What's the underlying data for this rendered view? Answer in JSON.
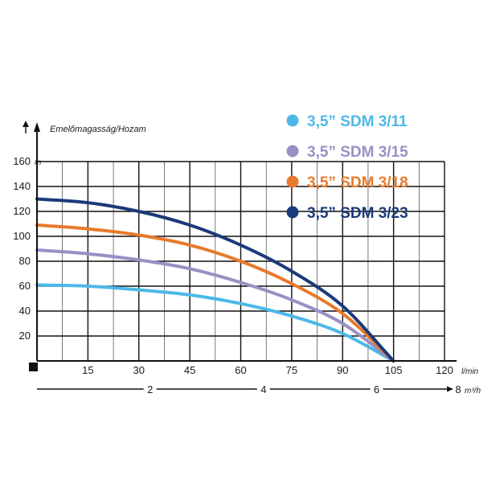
{
  "chart_data": {
    "type": "line",
    "ylabel": "Emelőmagasság/Hozam",
    "yunit": "m",
    "xunit": "l/min",
    "x2unit": "m³/h",
    "xlim": [
      0,
      120
    ],
    "ylim": [
      0,
      160
    ],
    "x_ticks": [
      "15",
      "30",
      "45",
      "60",
      "75",
      "90",
      "105",
      "120"
    ],
    "y_ticks": [
      "20",
      "40",
      "60",
      "80",
      "100",
      "120",
      "140",
      "160"
    ],
    "x2_ticks": [
      "2",
      "4",
      "6",
      "8"
    ],
    "x2_tick_positions_lmin": [
      33.3,
      66.7,
      100,
      133.3
    ],
    "grid": true,
    "legend_position": "top-right",
    "series": [
      {
        "name": "3,5\" SDM 3/11",
        "color": "#4db8e8",
        "x": [
          0,
          15,
          30,
          45,
          60,
          75,
          90,
          105
        ],
        "y": [
          61,
          60,
          57,
          53,
          46,
          36,
          22,
          0
        ]
      },
      {
        "name": "3,5\" SDM 3/15",
        "color": "#9b8fc4",
        "x": [
          0,
          15,
          30,
          45,
          60,
          75,
          90,
          105
        ],
        "y": [
          89,
          86,
          81,
          74,
          63,
          49,
          30,
          0
        ]
      },
      {
        "name": "3,5\" SDM 3/18",
        "color": "#e87a2c",
        "x": [
          0,
          15,
          30,
          45,
          60,
          75,
          90,
          105
        ],
        "y": [
          109,
          106,
          101,
          93,
          80,
          62,
          38,
          0
        ]
      },
      {
        "name": "3,5\" SDM 3/23",
        "color": "#1b3a7a",
        "x": [
          0,
          15,
          30,
          45,
          60,
          75,
          90,
          105
        ],
        "y": [
          130,
          127,
          120,
          109,
          93,
          72,
          44,
          0
        ]
      }
    ]
  }
}
